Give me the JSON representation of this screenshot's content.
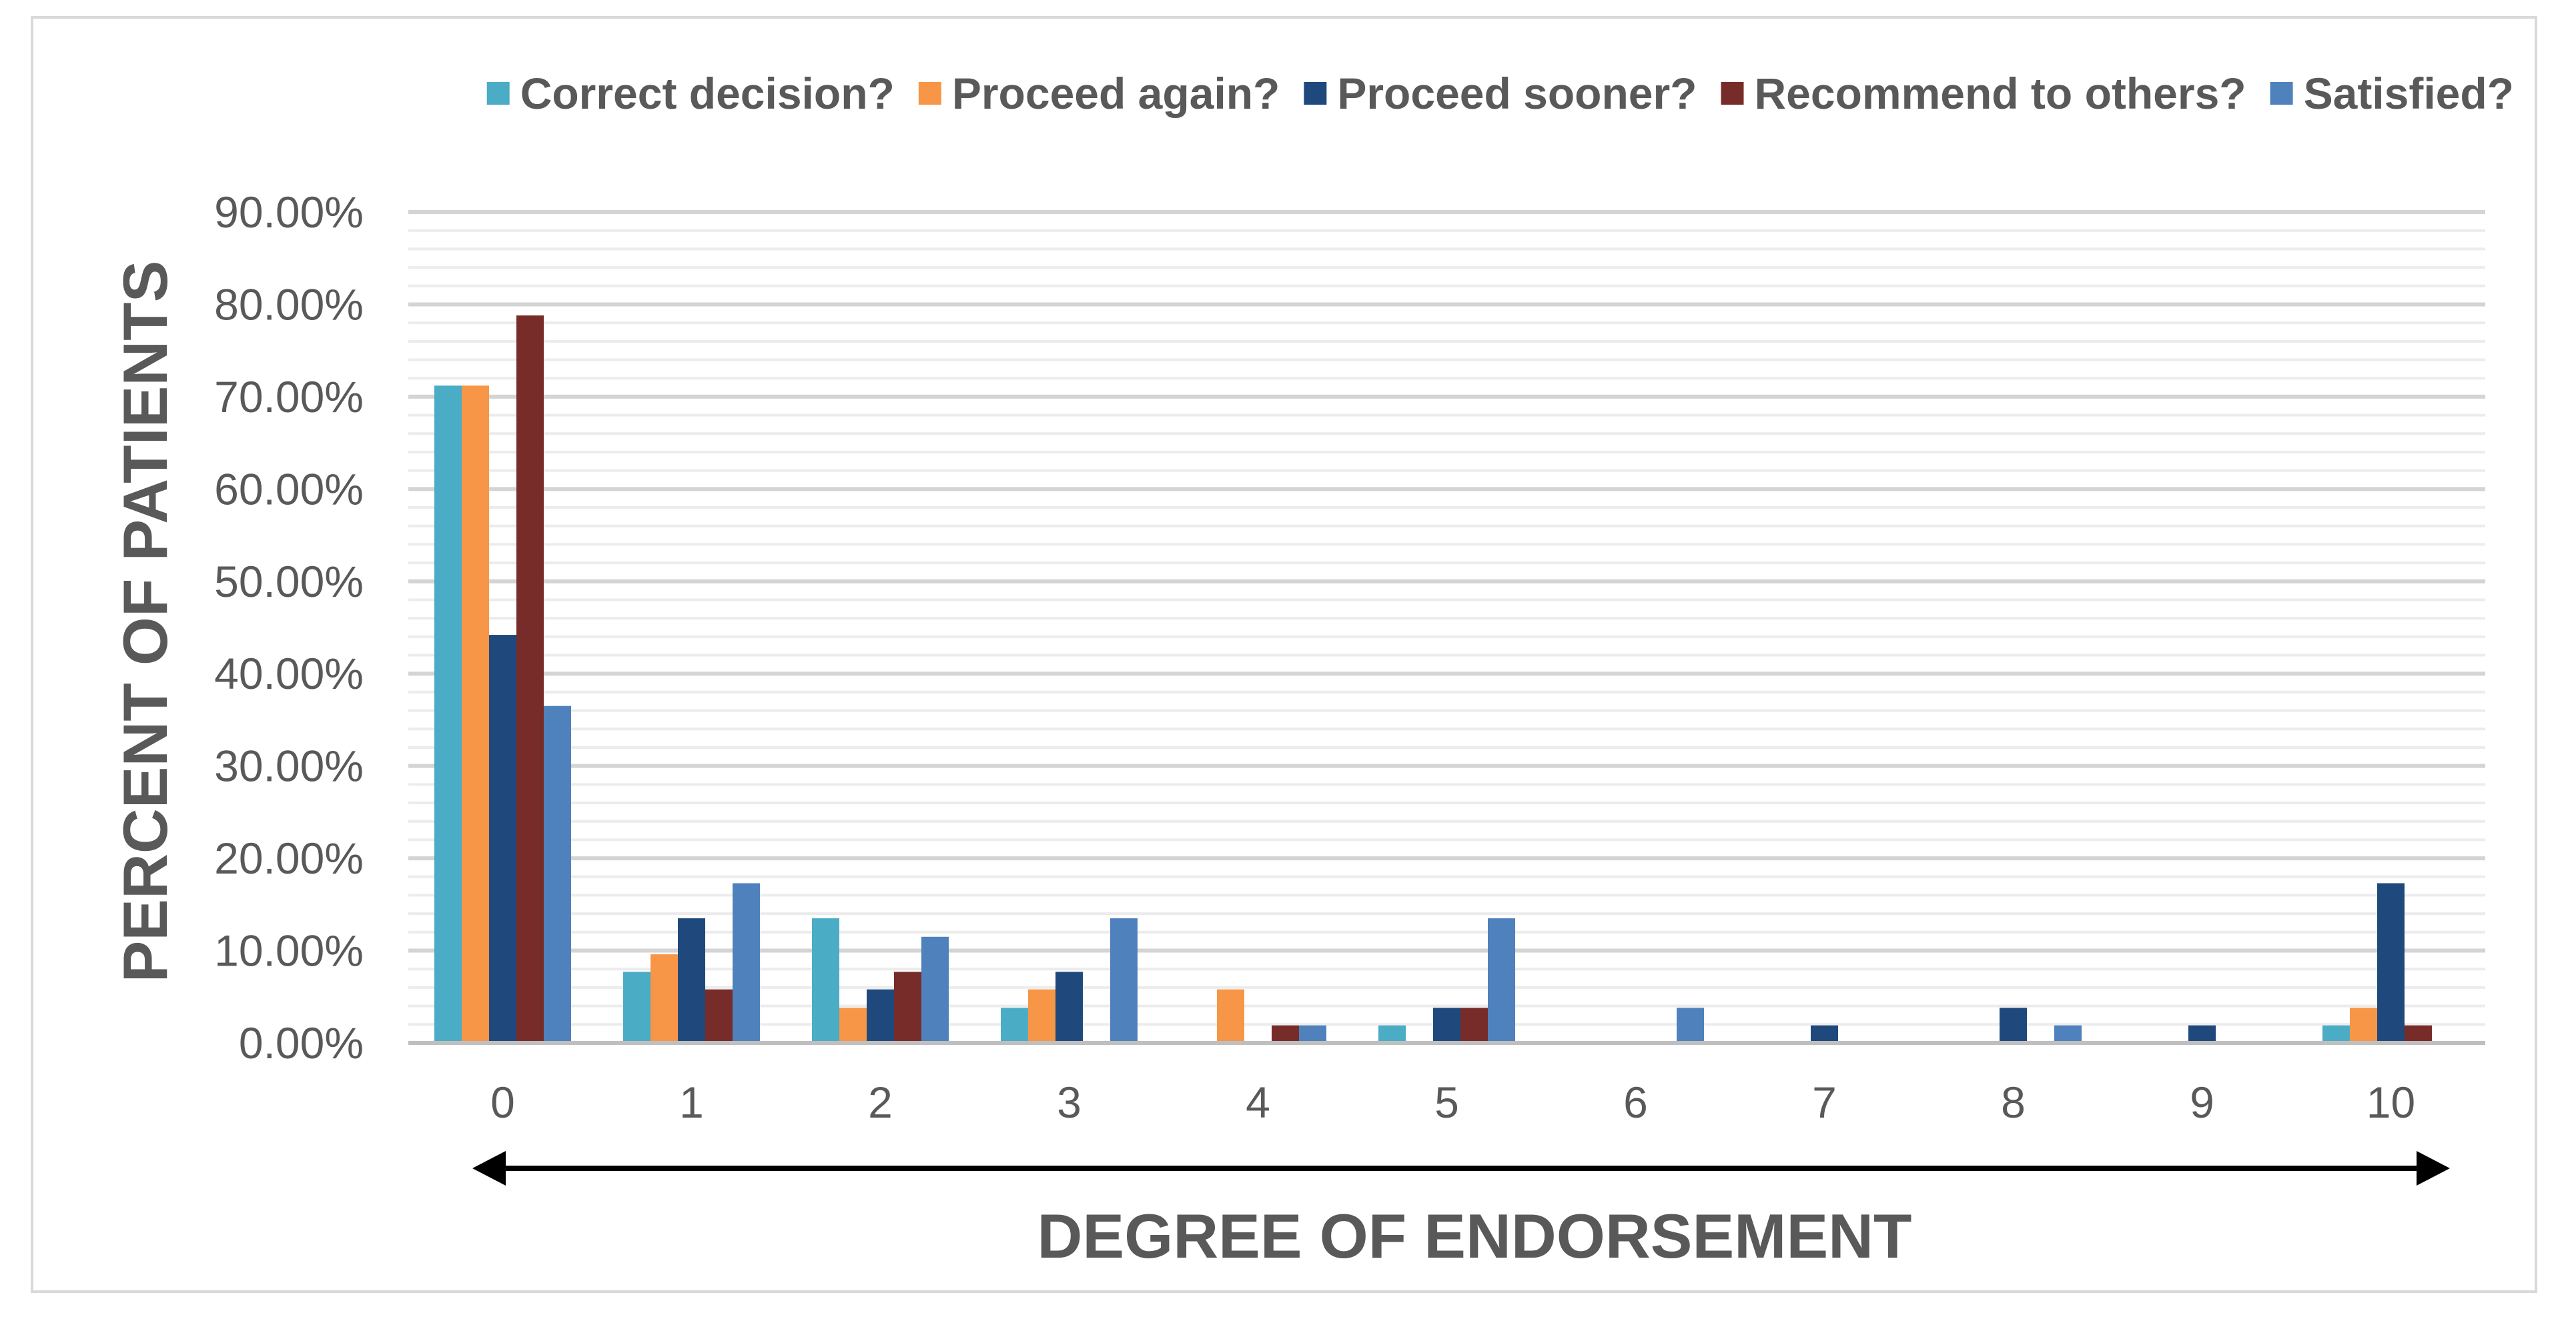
{
  "chart_data": {
    "type": "bar",
    "title": "",
    "xlabel": "DEGREE OF ENDORSEMENT",
    "ylabel": "PERCENT OF PATIENTS",
    "ylim": [
      0,
      0.9
    ],
    "yticks": [
      "0.00%",
      "10.00%",
      "20.00%",
      "30.00%",
      "40.00%",
      "50.00%",
      "60.00%",
      "70.00%",
      "80.00%",
      "90.00%"
    ],
    "categories": [
      "0",
      "1",
      "2",
      "3",
      "4",
      "5",
      "6",
      "7",
      "8",
      "9",
      "10"
    ],
    "grid": "horizontal major and minor gridlines",
    "legend_position": "top",
    "x_axis_arrow": "double-headed",
    "series": [
      {
        "name": "Correct decision?",
        "color": "#4bacc6",
        "values": [
          0.712,
          0.077,
          0.135,
          0.038,
          0,
          0.019,
          0,
          0,
          0,
          0,
          0.019
        ]
      },
      {
        "name": "Proceed again?",
        "color": "#f79646",
        "values": [
          0.712,
          0.096,
          0.038,
          0.058,
          0.058,
          0,
          0,
          0,
          0,
          0,
          0.038
        ]
      },
      {
        "name": "Proceed sooner?",
        "color": "#1f497d",
        "values": [
          0.442,
          0.135,
          0.058,
          0.077,
          0,
          0.038,
          0,
          0.019,
          0.038,
          0.019,
          0.173
        ]
      },
      {
        "name": "Recommend to others?",
        "color": "#772c2a",
        "values": [
          0.788,
          0.058,
          0.077,
          0,
          0.019,
          0.038,
          0,
          0,
          0,
          0,
          0.019
        ]
      },
      {
        "name": "Satisfied?",
        "color": "#4f81bd",
        "values": [
          0.365,
          0.173,
          0.115,
          0.135,
          0.019,
          0.135,
          0.038,
          0,
          0.019,
          0,
          0
        ]
      }
    ]
  }
}
